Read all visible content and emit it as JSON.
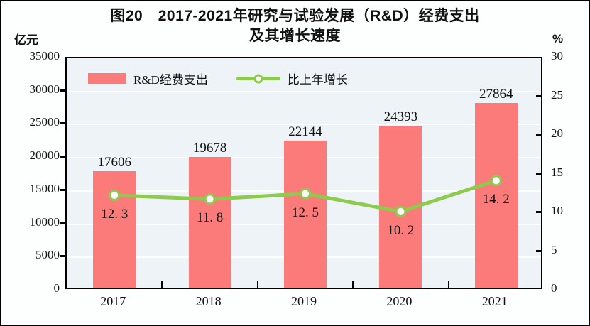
{
  "title": {
    "line1": "图20　2017-2021年研究与试验发展（R&D）经费支出",
    "line2": "及其增长速度"
  },
  "chart_data": {
    "type": "bar+line",
    "categories": [
      "2017",
      "2018",
      "2019",
      "2020",
      "2021"
    ],
    "series": [
      {
        "name": "R&D经费支出",
        "type": "bar",
        "axis": "left",
        "values": [
          17606,
          19678,
          22144,
          24393,
          27864
        ],
        "labels": [
          "17606",
          "19678",
          "22144",
          "24393",
          "27864"
        ],
        "color": "#fb7b7b"
      },
      {
        "name": "比上年增长",
        "type": "line",
        "axis": "right",
        "values": [
          12.3,
          11.8,
          12.5,
          10.2,
          14.2
        ],
        "labels": [
          "12. 3",
          "11. 8",
          "12. 5",
          "10. 2",
          "14. 2"
        ],
        "color": "#8ccb4b",
        "marker_fill": "#ffffff"
      }
    ],
    "left_axis": {
      "unit": "亿元",
      "min": 0,
      "max": 35000,
      "step": 5000
    },
    "right_axis": {
      "unit": "%",
      "min": 0,
      "max": 30,
      "step": 5
    },
    "grid": true,
    "grid_color": "#ffffff",
    "plot_bg": "#edf3f7",
    "legend_position": "top-left-inside"
  }
}
